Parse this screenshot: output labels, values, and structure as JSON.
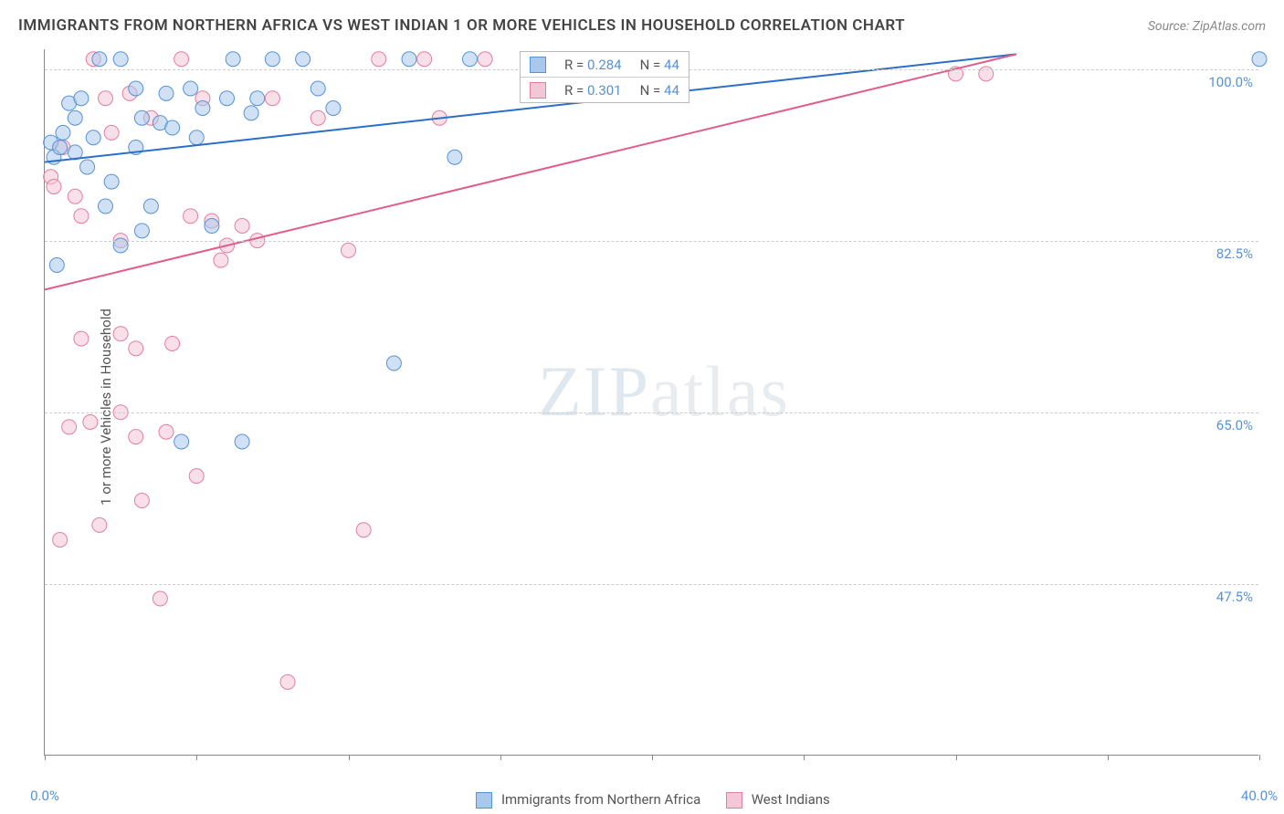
{
  "title": "IMMIGRANTS FROM NORTHERN AFRICA VS WEST INDIAN 1 OR MORE VEHICLES IN HOUSEHOLD CORRELATION CHART",
  "source_label": "Source: ",
  "source_value": "ZipAtlas.com",
  "y_axis_label": "1 or more Vehicles in Household",
  "watermark_bold": "ZIP",
  "watermark_thin": "atlas",
  "chart": {
    "type": "scatter",
    "background_color": "#ffffff",
    "grid_color": "#cccccc",
    "axis_color": "#888888",
    "tick_label_color": "#5793d4",
    "xlim": [
      0,
      40
    ],
    "ylim": [
      30,
      102
    ],
    "x_ticks": [
      0,
      5,
      10,
      15,
      20,
      25,
      30,
      35,
      40
    ],
    "x_tick_labels": {
      "0": "0.0%",
      "40": "40.0%"
    },
    "y_ticks": [
      47.5,
      65.0,
      82.5,
      100.0
    ],
    "y_tick_labels": [
      "47.5%",
      "65.0%",
      "82.5%",
      "100.0%"
    ],
    "marker_radius": 8,
    "marker_opacity": 0.55,
    "line_width": 2,
    "series": [
      {
        "name": "Immigrants from Northern Africa",
        "fill_color": "#a9c8ec",
        "stroke_color": "#5793d4",
        "line_color": "#2b6fc6",
        "R": "0.284",
        "N": "44",
        "trend": {
          "x1": 0,
          "y1": 90.5,
          "x2": 32,
          "y2": 101.5
        },
        "points": [
          [
            0.2,
            92.5
          ],
          [
            0.3,
            91.0
          ],
          [
            0.4,
            80.0
          ],
          [
            0.5,
            92.0
          ],
          [
            0.6,
            93.5
          ],
          [
            0.8,
            96.5
          ],
          [
            1.0,
            95.0
          ],
          [
            1.0,
            91.5
          ],
          [
            1.2,
            97.0
          ],
          [
            1.4,
            90.0
          ],
          [
            1.6,
            93.0
          ],
          [
            1.8,
            101.0
          ],
          [
            2.0,
            86.0
          ],
          [
            2.2,
            88.5
          ],
          [
            2.5,
            82.0
          ],
          [
            2.5,
            101.0
          ],
          [
            3.0,
            92.0
          ],
          [
            3.0,
            98.0
          ],
          [
            3.2,
            95.0
          ],
          [
            3.2,
            83.5
          ],
          [
            3.5,
            86.0
          ],
          [
            3.8,
            94.5
          ],
          [
            4.0,
            97.5
          ],
          [
            4.2,
            94.0
          ],
          [
            4.5,
            62.0
          ],
          [
            4.8,
            98.0
          ],
          [
            5.0,
            93.0
          ],
          [
            5.2,
            96.0
          ],
          [
            5.5,
            84.0
          ],
          [
            6.0,
            97.0
          ],
          [
            6.2,
            101.0
          ],
          [
            6.5,
            62.0
          ],
          [
            6.8,
            95.5
          ],
          [
            7.0,
            97.0
          ],
          [
            7.5,
            101.0
          ],
          [
            8.5,
            101.0
          ],
          [
            9.0,
            98.0
          ],
          [
            9.5,
            96.0
          ],
          [
            11.5,
            70.0
          ],
          [
            12.0,
            101.0
          ],
          [
            13.5,
            91.0
          ],
          [
            14.0,
            101.0
          ],
          [
            16.0,
            101.0
          ],
          [
            40.0,
            101.0
          ]
        ]
      },
      {
        "name": "West Indians",
        "fill_color": "#f4c7d6",
        "stroke_color": "#e47ea1",
        "line_color": "#e15d8b",
        "R": "0.301",
        "N": "44",
        "trend": {
          "x1": 0,
          "y1": 77.5,
          "x2": 32,
          "y2": 101.5
        },
        "points": [
          [
            0.2,
            89.0
          ],
          [
            0.3,
            88.0
          ],
          [
            0.5,
            52.0
          ],
          [
            0.6,
            92.0
          ],
          [
            0.8,
            63.5
          ],
          [
            1.0,
            87.0
          ],
          [
            1.2,
            72.5
          ],
          [
            1.2,
            85.0
          ],
          [
            1.5,
            64.0
          ],
          [
            1.6,
            101.0
          ],
          [
            1.8,
            53.5
          ],
          [
            2.0,
            97.0
          ],
          [
            2.2,
            93.5
          ],
          [
            2.5,
            82.5
          ],
          [
            2.5,
            65.0
          ],
          [
            2.5,
            73.0
          ],
          [
            2.8,
            97.5
          ],
          [
            3.0,
            62.5
          ],
          [
            3.0,
            71.5
          ],
          [
            3.2,
            56.0
          ],
          [
            3.5,
            95.0
          ],
          [
            3.8,
            46.0
          ],
          [
            4.0,
            63.0
          ],
          [
            4.2,
            72.0
          ],
          [
            4.5,
            101.0
          ],
          [
            4.8,
            85.0
          ],
          [
            5.0,
            58.5
          ],
          [
            5.2,
            97.0
          ],
          [
            5.5,
            84.5
          ],
          [
            5.8,
            80.5
          ],
          [
            6.0,
            82.0
          ],
          [
            6.5,
            84.0
          ],
          [
            7.0,
            82.5
          ],
          [
            7.5,
            97.0
          ],
          [
            8.0,
            37.5
          ],
          [
            9.0,
            95.0
          ],
          [
            10.0,
            81.5
          ],
          [
            10.5,
            53.0
          ],
          [
            11.0,
            101.0
          ],
          [
            12.5,
            101.0
          ],
          [
            13.0,
            95.0
          ],
          [
            14.5,
            101.0
          ],
          [
            30.0,
            99.5
          ],
          [
            31.0,
            99.5
          ]
        ]
      }
    ]
  },
  "legend_top": {
    "R_label": "R =",
    "N_label": "N ="
  },
  "legend_bottom": {
    "series1_label": "Immigrants from Northern Africa",
    "series2_label": "West Indians"
  }
}
